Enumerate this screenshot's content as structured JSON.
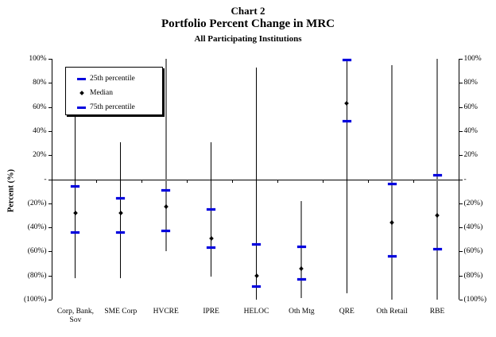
{
  "chart_data": {
    "type": "scatter",
    "subtype": "high-low-whisker-percentiles",
    "title": "Chart 2",
    "subtitle": "Portfolio Percent Change in MRC",
    "subtitle2": "All Participating Institutions",
    "ylabel": "Percent (%)",
    "ylim": [
      -100,
      100
    ],
    "ytick_step": 20,
    "ytick_values": [
      100,
      80,
      60,
      40,
      20,
      0,
      -20,
      -40,
      -60,
      -80,
      -100
    ],
    "ytick_labels": [
      "100%",
      "80%",
      "60%",
      "40%",
      "20%",
      "-",
      "(20%)",
      "(40%)",
      "(60%)",
      "(80%)",
      "(100%)"
    ],
    "dual_y_axis": true,
    "grid": false,
    "legend_position": "top-left-inside",
    "categories": [
      "Corp, Bank, Sov",
      "SME Corp",
      "HVCRE",
      "IPRE",
      "HELOC",
      "Oth Mtg",
      "QRE",
      "Oth Retail",
      "RBE"
    ],
    "series": [
      {
        "name": "25th percentile",
        "marker": "blue-dash",
        "values": [
          -44,
          -44,
          -43,
          -57,
          -89,
          -83,
          48,
          -64,
          -58
        ]
      },
      {
        "name": "Median",
        "marker": "black-diamond",
        "values": [
          -28,
          -28,
          -23,
          -49,
          -80,
          -74,
          63,
          -36,
          -30
        ]
      },
      {
        "name": "75th percentile",
        "marker": "blue-dash",
        "values": [
          -6,
          -16,
          -9,
          -25,
          -54,
          -56,
          99,
          -4,
          3
        ]
      }
    ],
    "whisker_max": [
      54,
      31,
      100,
      31,
      93,
      -18,
      100,
      95,
      100
    ],
    "whisker_min": [
      -82,
      -82,
      -60,
      -81,
      -100,
      -99,
      -95,
      -100,
      -100
    ],
    "styles": {
      "percentile_color": "#0000dd",
      "median_color": "#000000",
      "axis_color": "#000000",
      "line_colors": [
        "#000000",
        "#000000",
        "#7a7a7a",
        "#000000",
        "#000000",
        "#7a7a7a",
        "#000000",
        "#7a7a7a",
        "#7a7a7a"
      ],
      "line_widths": [
        1,
        1,
        2,
        1,
        1,
        2,
        1,
        2,
        2
      ]
    }
  }
}
